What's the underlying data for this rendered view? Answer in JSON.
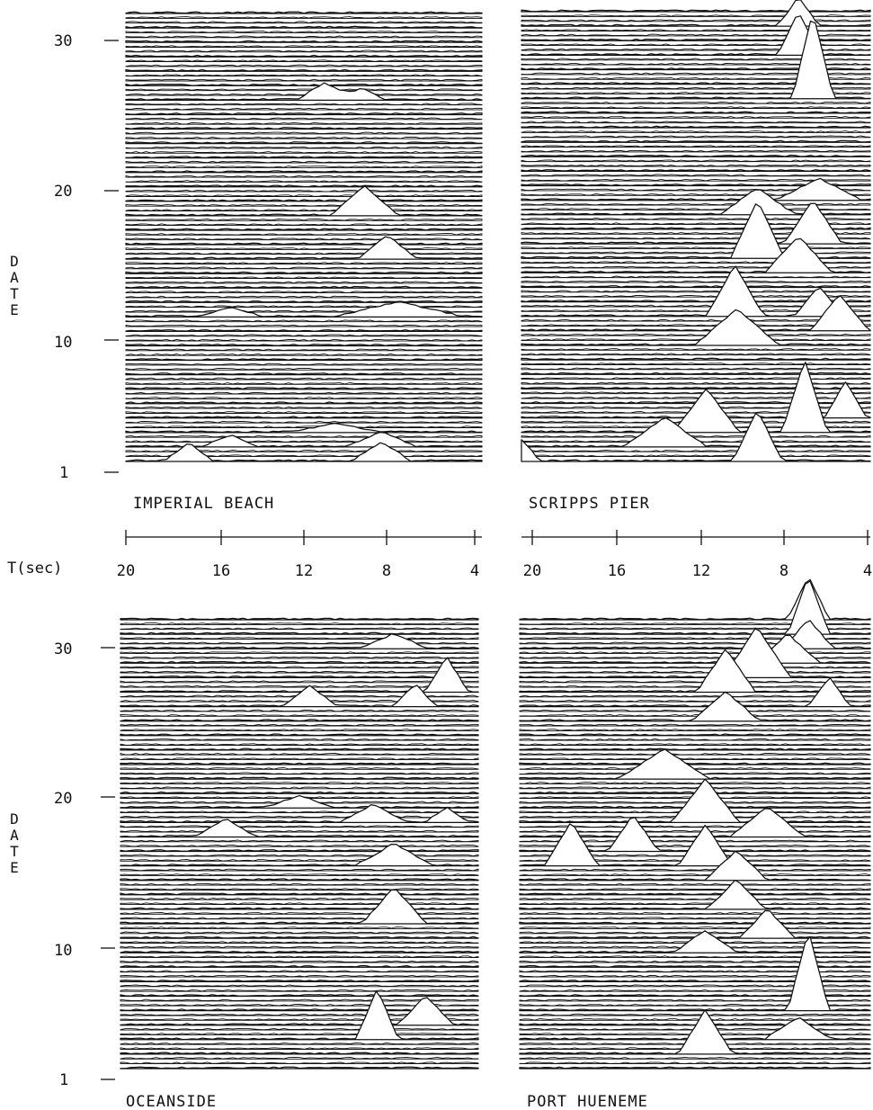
{
  "chart_data": [
    {
      "type": "area",
      "title": "IMPERIAL BEACH",
      "ylabel": "DATE",
      "y_ticks": [
        "1",
        "10",
        "20",
        "30"
      ],
      "ylim": [
        1,
        32
      ],
      "xlim": [
        20,
        3
      ],
      "n_days": 32,
      "peaks": [
        {
          "day": 1,
          "x": 17,
          "a": 1.3,
          "w": 1.1
        },
        {
          "day": 1,
          "x": 7.8,
          "a": 1.3,
          "w": 1.4
        },
        {
          "day": 2,
          "x": 15,
          "a": 0.8,
          "w": 1.3
        },
        {
          "day": 2,
          "x": 7.8,
          "a": 1.0,
          "w": 1.6
        },
        {
          "day": 3,
          "x": 10,
          "a": 0.6,
          "w": 2.0
        },
        {
          "day": 11,
          "x": 7.0,
          "a": 1.0,
          "w": 3.0
        },
        {
          "day": 11,
          "x": 15,
          "a": 0.6,
          "w": 1.5
        },
        {
          "day": 15,
          "x": 7.5,
          "a": 1.6,
          "w": 1.4
        },
        {
          "day": 18,
          "x": 8.6,
          "a": 2.0,
          "w": 1.6
        },
        {
          "day": 26,
          "x": 10.5,
          "a": 1.2,
          "w": 1.3
        },
        {
          "day": 26,
          "x": 8.8,
          "a": 0.8,
          "w": 1.2
        }
      ]
    },
    {
      "type": "area",
      "title": "SCRIPPS PIER",
      "ylim": [
        1,
        32
      ],
      "xlim": [
        20,
        3
      ],
      "n_days": 32,
      "peaks": [
        {
          "day": 1,
          "x": 20,
          "a": 1.5,
          "w": 0.9
        },
        {
          "day": 1,
          "x": 8.5,
          "a": 3.5,
          "w": 1.2
        },
        {
          "day": 2,
          "x": 13,
          "a": 2.0,
          "w": 2.0
        },
        {
          "day": 3,
          "x": 11,
          "a": 3.0,
          "w": 1.6
        },
        {
          "day": 3,
          "x": 6.2,
          "a": 5.0,
          "w": 1.1
        },
        {
          "day": 4,
          "x": 4.2,
          "a": 2.5,
          "w": 1.0
        },
        {
          "day": 9,
          "x": 9.5,
          "a": 2.5,
          "w": 2.0
        },
        {
          "day": 10,
          "x": 4.5,
          "a": 2.5,
          "w": 1.4
        },
        {
          "day": 11,
          "x": 9.6,
          "a": 3.5,
          "w": 1.4
        },
        {
          "day": 11,
          "x": 5.5,
          "a": 2.0,
          "w": 1.2
        },
        {
          "day": 14,
          "x": 6.5,
          "a": 2.5,
          "w": 1.6
        },
        {
          "day": 15,
          "x": 8.5,
          "a": 4.0,
          "w": 1.3
        },
        {
          "day": 16,
          "x": 5.8,
          "a": 3.0,
          "w": 1.4
        },
        {
          "day": 18,
          "x": 8.5,
          "a": 1.8,
          "w": 1.8
        },
        {
          "day": 19,
          "x": 5.5,
          "a": 1.5,
          "w": 2.0
        },
        {
          "day": 26,
          "x": 5.8,
          "a": 6.0,
          "w": 1.0
        },
        {
          "day": 29,
          "x": 6.5,
          "a": 3.0,
          "w": 1.0
        },
        {
          "day": 31,
          "x": 6.5,
          "a": 2.0,
          "w": 1.0
        }
      ]
    },
    {
      "type": "area",
      "title": "OCEANSIDE",
      "ylabel": "DATE",
      "y_ticks": [
        "1",
        "10",
        "20",
        "30"
      ],
      "ylim": [
        1,
        32
      ],
      "xlim": [
        20,
        3
      ],
      "n_days": 32,
      "peaks": [
        {
          "day": 3,
          "x": 7.8,
          "a": 3.5,
          "w": 1.0
        },
        {
          "day": 4,
          "x": 5.5,
          "a": 2.0,
          "w": 1.3
        },
        {
          "day": 11,
          "x": 7.0,
          "a": 2.5,
          "w": 1.5
        },
        {
          "day": 15,
          "x": 7.0,
          "a": 1.5,
          "w": 1.8
        },
        {
          "day": 17,
          "x": 15,
          "a": 1.2,
          "w": 1.4
        },
        {
          "day": 18,
          "x": 8.0,
          "a": 1.2,
          "w": 1.5
        },
        {
          "day": 18,
          "x": 4.5,
          "a": 1.0,
          "w": 1.0
        },
        {
          "day": 19,
          "x": 11.5,
          "a": 0.8,
          "w": 1.6
        },
        {
          "day": 26,
          "x": 11.0,
          "a": 1.4,
          "w": 1.3
        },
        {
          "day": 26,
          "x": 6.0,
          "a": 1.5,
          "w": 1.0
        },
        {
          "day": 27,
          "x": 4.5,
          "a": 2.4,
          "w": 1.0
        },
        {
          "day": 30,
          "x": 7.0,
          "a": 1.0,
          "w": 1.5
        }
      ]
    },
    {
      "type": "area",
      "title": "PORT HUENEME",
      "ylim": [
        1,
        32
      ],
      "xlim": [
        20,
        3
      ],
      "n_days": 32,
      "peaks": [
        {
          "day": 2,
          "x": 11.0,
          "a": 3.0,
          "w": 1.3
        },
        {
          "day": 3,
          "x": 6.5,
          "a": 1.5,
          "w": 1.6
        },
        {
          "day": 5,
          "x": 6.0,
          "a": 5.5,
          "w": 1.0
        },
        {
          "day": 9,
          "x": 11.0,
          "a": 1.5,
          "w": 1.5
        },
        {
          "day": 10,
          "x": 8.0,
          "a": 2.0,
          "w": 1.3
        },
        {
          "day": 12,
          "x": 9.5,
          "a": 2.0,
          "w": 1.4
        },
        {
          "day": 14,
          "x": 9.5,
          "a": 2.0,
          "w": 1.5
        },
        {
          "day": 15,
          "x": 17.5,
          "a": 3.0,
          "w": 1.3
        },
        {
          "day": 15,
          "x": 11.0,
          "a": 2.8,
          "w": 1.3
        },
        {
          "day": 16,
          "x": 14.5,
          "a": 2.5,
          "w": 1.2
        },
        {
          "day": 17,
          "x": 8.0,
          "a": 2.0,
          "w": 1.8
        },
        {
          "day": 18,
          "x": 11.0,
          "a": 3.0,
          "w": 1.6
        },
        {
          "day": 21,
          "x": 13.0,
          "a": 2.0,
          "w": 2.2
        },
        {
          "day": 25,
          "x": 10.0,
          "a": 2.0,
          "w": 1.6
        },
        {
          "day": 26,
          "x": 5.0,
          "a": 2.0,
          "w": 1.0
        },
        {
          "day": 27,
          "x": 10.0,
          "a": 3.0,
          "w": 1.4
        },
        {
          "day": 28,
          "x": 8.5,
          "a": 3.5,
          "w": 1.6
        },
        {
          "day": 29,
          "x": 7.0,
          "a": 2.0,
          "w": 1.5
        },
        {
          "day": 30,
          "x": 6.0,
          "a": 2.0,
          "w": 1.2
        },
        {
          "day": 31,
          "x": 6.0,
          "a": 4.0,
          "w": 1.0
        },
        {
          "day": 32,
          "x": 6.0,
          "a": 3.0,
          "w": 1.0
        }
      ]
    }
  ],
  "shared_xaxis": {
    "label": "T(sec)",
    "ticks": [
      "20",
      "16",
      "12",
      "8",
      "4"
    ],
    "tick_values": [
      20,
      16,
      12,
      8,
      4
    ]
  }
}
